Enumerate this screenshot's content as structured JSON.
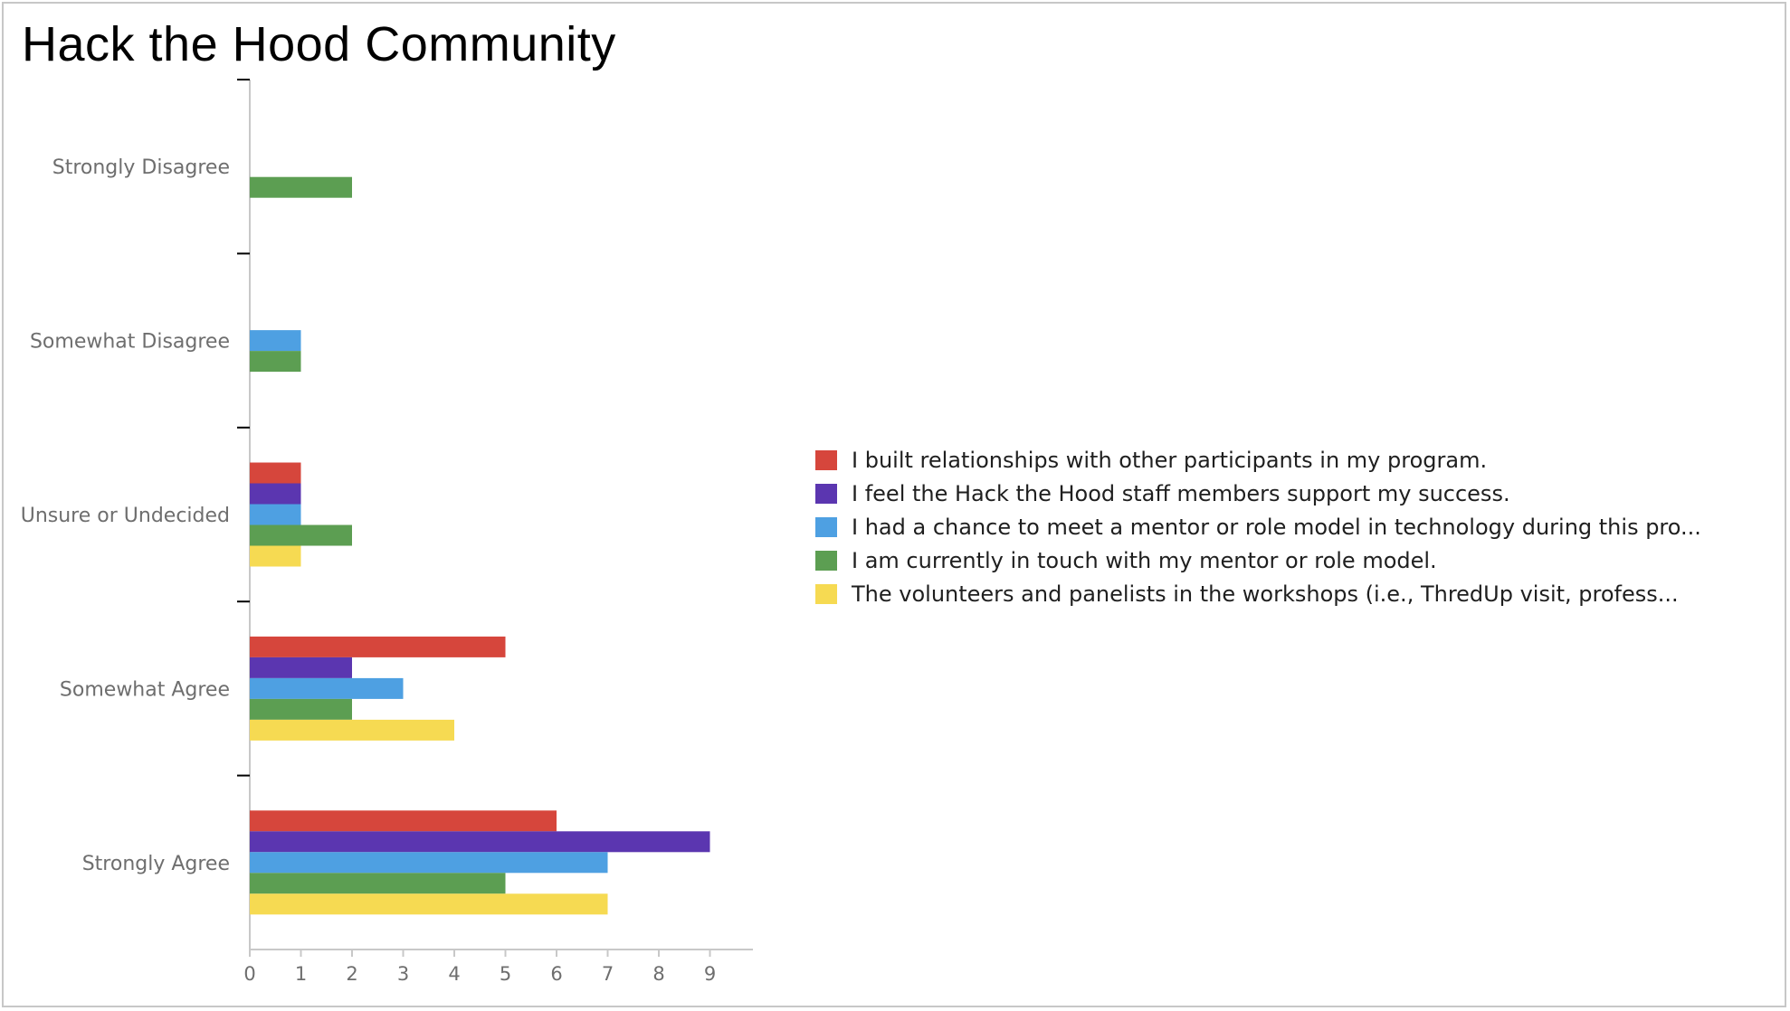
{
  "title": "Hack the Hood Community",
  "chart_data": {
    "type": "bar",
    "orientation": "horizontal",
    "categories": [
      "Strongly Disagree",
      "Somewhat Disagree",
      "Unsure or Undecided",
      "Somewhat Agree",
      "Strongly Agree"
    ],
    "series": [
      {
        "name": "I built relationships with other participants in my program.",
        "color": "#d6463c",
        "values": [
          0,
          0,
          1,
          5,
          6
        ]
      },
      {
        "name": "I feel the Hack the Hood staff members support my success.",
        "color": "#5b36b0",
        "values": [
          0,
          0,
          1,
          2,
          9
        ]
      },
      {
        "name": "I had a chance to meet a mentor or role model in technology during this pro...",
        "color": "#4ea0e2",
        "values": [
          0,
          1,
          1,
          3,
          7
        ]
      },
      {
        "name": "I am currently in touch with my mentor or role model.",
        "color": "#5c9e52",
        "values": [
          2,
          1,
          2,
          2,
          5
        ]
      },
      {
        "name": "The volunteers and panelists in the workshops (i.e., ThredUp visit, profess...",
        "color": "#f6da52",
        "values": [
          0,
          0,
          1,
          4,
          7
        ]
      }
    ],
    "x_ticks": [
      "0",
      "1",
      "2",
      "3",
      "4",
      "5",
      "6",
      "7",
      "8",
      "9"
    ],
    "xlim": [
      0,
      10
    ],
    "grid": false,
    "legend_position": "right"
  }
}
